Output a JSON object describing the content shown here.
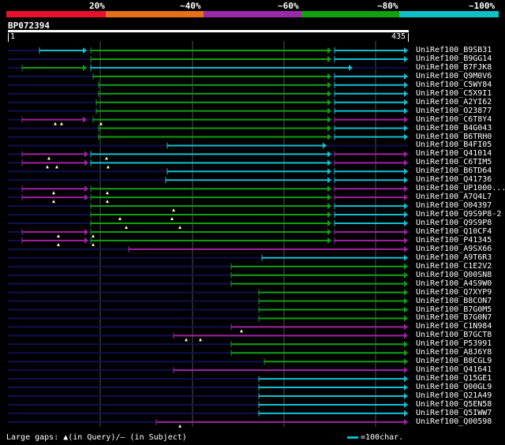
{
  "header": {
    "pct_labels": [
      "20%",
      "~40%",
      "~60%",
      "~80%",
      "~100%"
    ],
    "color_bands": [
      "#e8102a",
      "#e87018",
      "#9a2aa8",
      "#10a010",
      "#10c0c8"
    ]
  },
  "query": {
    "name": "BP072394",
    "start": "1",
    "end": "435",
    "length": 435
  },
  "colors": {
    "cyan": "#10c0d0",
    "green": "#10a010",
    "purple": "#a020a0",
    "navy": "#101050",
    "grid": "#505050",
    "gap": "#ffffc0"
  },
  "hits": [
    {
      "name": "UniRef100_B9SB31",
      "segs": [
        [
          50,
          110,
          "cyan"
        ],
        [
          115,
          420,
          "green"
        ],
        [
          424,
          517,
          "cyan"
        ]
      ],
      "gaps": []
    },
    {
      "name": "UniRef100_B9GG14",
      "segs": [
        [
          115,
          420,
          "green"
        ],
        [
          424,
          517,
          "cyan"
        ]
      ],
      "gaps": []
    },
    {
      "name": "UniRef100_B7FJK8",
      "segs": [
        [
          28,
          110,
          "green"
        ],
        [
          115,
          447,
          "cyan"
        ]
      ],
      "gaps": []
    },
    {
      "name": "UniRef100_Q9M0V6",
      "segs": [
        [
          118,
          420,
          "green"
        ],
        [
          424,
          517,
          "cyan"
        ]
      ],
      "gaps": []
    },
    {
      "name": "UniRef100_C5WY84",
      "segs": [
        [
          125,
          420,
          "green"
        ],
        [
          424,
          517,
          "cyan"
        ]
      ],
      "gaps": []
    },
    {
      "name": "UniRef100_C5X9I1",
      "segs": [
        [
          125,
          420,
          "green"
        ],
        [
          424,
          517,
          "cyan"
        ]
      ],
      "gaps": []
    },
    {
      "name": "UniRef100_A2YI62",
      "segs": [
        [
          122,
          420,
          "green"
        ],
        [
          424,
          517,
          "cyan"
        ]
      ],
      "gaps": []
    },
    {
      "name": "UniRef100_O23877",
      "segs": [
        [
          122,
          420,
          "green"
        ],
        [
          424,
          517,
          "cyan"
        ]
      ],
      "gaps": []
    },
    {
      "name": "UniRef100_C6T8Y4",
      "segs": [
        [
          28,
          110,
          "purple"
        ],
        [
          118,
          420,
          "green"
        ],
        [
          424,
          517,
          "purple"
        ]
      ],
      "gaps": [
        70,
        78,
        128
      ]
    },
    {
      "name": "UniRef100_B4G043",
      "segs": [
        [
          125,
          420,
          "green"
        ],
        [
          424,
          517,
          "cyan"
        ]
      ],
      "gaps": []
    },
    {
      "name": "UniRef100_B6TRH0",
      "segs": [
        [
          125,
          420,
          "green"
        ],
        [
          424,
          517,
          "cyan"
        ]
      ],
      "gaps": []
    },
    {
      "name": "UniRef100_B4FI05",
      "segs": [
        [
          212,
          414,
          "cyan"
        ]
      ],
      "gaps": []
    },
    {
      "name": "UniRef100_Q41014",
      "segs": [
        [
          28,
          112,
          "purple"
        ],
        [
          115,
          420,
          "cyan"
        ],
        [
          424,
          517,
          "purple"
        ]
      ],
      "gaps": [
        62,
        135
      ]
    },
    {
      "name": "UniRef100_C6TIM5",
      "segs": [
        [
          28,
          112,
          "purple"
        ],
        [
          115,
          420,
          "cyan"
        ],
        [
          424,
          517,
          "purple"
        ]
      ],
      "gaps": [
        60,
        72,
        137
      ]
    },
    {
      "name": "UniRef100_B6TD64",
      "segs": [
        [
          212,
          420,
          "cyan"
        ],
        [
          424,
          517,
          "cyan"
        ]
      ],
      "gaps": []
    },
    {
      "name": "UniRef100_Q41736",
      "segs": [
        [
          210,
          420,
          "cyan"
        ],
        [
          424,
          517,
          "cyan"
        ]
      ],
      "gaps": []
    },
    {
      "name": "UniRef100_UP1000...",
      "segs": [
        [
          28,
          112,
          "purple"
        ],
        [
          115,
          420,
          "green"
        ],
        [
          424,
          517,
          "purple"
        ]
      ],
      "gaps": [
        68,
        136
      ]
    },
    {
      "name": "UniRef100_A7Q4L7",
      "segs": [
        [
          28,
          112,
          "purple"
        ],
        [
          115,
          420,
          "green"
        ],
        [
          424,
          517,
          "purple"
        ]
      ],
      "gaps": [
        68,
        136
      ]
    },
    {
      "name": "UniRef100_O04397",
      "segs": [
        [
          115,
          420,
          "green"
        ],
        [
          424,
          517,
          "cyan"
        ]
      ],
      "gaps": [
        220
      ]
    },
    {
      "name": "UniRef100_Q9S9P8-2",
      "segs": [
        [
          115,
          420,
          "green"
        ],
        [
          424,
          517,
          "cyan"
        ]
      ],
      "gaps": [
        152,
        218
      ]
    },
    {
      "name": "UniRef100_Q9S9P8",
      "segs": [
        [
          115,
          420,
          "green"
        ],
        [
          424,
          517,
          "cyan"
        ]
      ],
      "gaps": [
        160,
        228
      ]
    },
    {
      "name": "UniRef100_Q10CF4",
      "segs": [
        [
          28,
          112,
          "purple"
        ],
        [
          115,
          420,
          "green"
        ],
        [
          424,
          517,
          "purple"
        ]
      ],
      "gaps": [
        74,
        118
      ]
    },
    {
      "name": "UniRef100_P41345",
      "segs": [
        [
          28,
          112,
          "purple"
        ],
        [
          115,
          420,
          "green"
        ],
        [
          424,
          517,
          "purple"
        ]
      ],
      "gaps": [
        74,
        118
      ]
    },
    {
      "name": "UniRef100_A9SX66",
      "segs": [
        [
          163,
          517,
          "purple"
        ]
      ],
      "gaps": []
    },
    {
      "name": "UniRef100_A9T6R3",
      "segs": [
        [
          332,
          517,
          "cyan"
        ]
      ],
      "gaps": []
    },
    {
      "name": "UniRef100_C1E2V2",
      "segs": [
        [
          293,
          517,
          "green"
        ]
      ],
      "gaps": []
    },
    {
      "name": "UniRef100_Q00SN8",
      "segs": [
        [
          293,
          517,
          "green"
        ]
      ],
      "gaps": []
    },
    {
      "name": "UniRef100_A4S9W0",
      "segs": [
        [
          293,
          517,
          "green"
        ]
      ],
      "gaps": []
    },
    {
      "name": "UniRef100_Q7XYP9",
      "segs": [
        [
          328,
          517,
          "green"
        ]
      ],
      "gaps": []
    },
    {
      "name": "UniRef100_B8CON7",
      "segs": [
        [
          328,
          517,
          "green"
        ]
      ],
      "gaps": []
    },
    {
      "name": "UniRef100_B7G0M5",
      "segs": [
        [
          328,
          517,
          "green"
        ]
      ],
      "gaps": []
    },
    {
      "name": "UniRef100_B7G0N7",
      "segs": [
        [
          328,
          517,
          "green"
        ]
      ],
      "gaps": []
    },
    {
      "name": "UniRef100_C1N984",
      "segs": [
        [
          293,
          517,
          "purple"
        ]
      ],
      "gaps": [
        306
      ]
    },
    {
      "name": "UniRef100_B7GCT8",
      "segs": [
        [
          220,
          517,
          "purple"
        ]
      ],
      "gaps": [
        236,
        254
      ]
    },
    {
      "name": "UniRef100_P53991",
      "segs": [
        [
          293,
          517,
          "green"
        ]
      ],
      "gaps": []
    },
    {
      "name": "UniRef100_A8J6Y8",
      "segs": [
        [
          293,
          517,
          "green"
        ]
      ],
      "gaps": []
    },
    {
      "name": "UniRef100_B8CGL9",
      "segs": [
        [
          335,
          517,
          "green"
        ]
      ],
      "gaps": []
    },
    {
      "name": "UniRef100_Q41641",
      "segs": [
        [
          220,
          517,
          "purple"
        ]
      ],
      "gaps": []
    },
    {
      "name": "UniRef100_Q15GE1",
      "segs": [
        [
          328,
          517,
          "cyan"
        ]
      ],
      "gaps": []
    },
    {
      "name": "UniRef100_Q00GL9",
      "segs": [
        [
          328,
          517,
          "cyan"
        ]
      ],
      "gaps": []
    },
    {
      "name": "UniRef100_Q21A49",
      "segs": [
        [
          328,
          517,
          "cyan"
        ]
      ],
      "gaps": []
    },
    {
      "name": "UniRef100_Q5EN58",
      "segs": [
        [
          328,
          517,
          "cyan"
        ]
      ],
      "gaps": []
    },
    {
      "name": "UniRef100_Q5IWW7",
      "segs": [
        [
          328,
          517,
          "cyan"
        ]
      ],
      "gaps": []
    },
    {
      "name": "UniRef100_Q00598",
      "segs": [
        [
          198,
          517,
          "purple"
        ]
      ],
      "gaps": [
        228
      ]
    }
  ],
  "legend": {
    "text": "Large gaps: ▲(in Query)/– (in Subject)",
    "scale_text": "=100char."
  }
}
